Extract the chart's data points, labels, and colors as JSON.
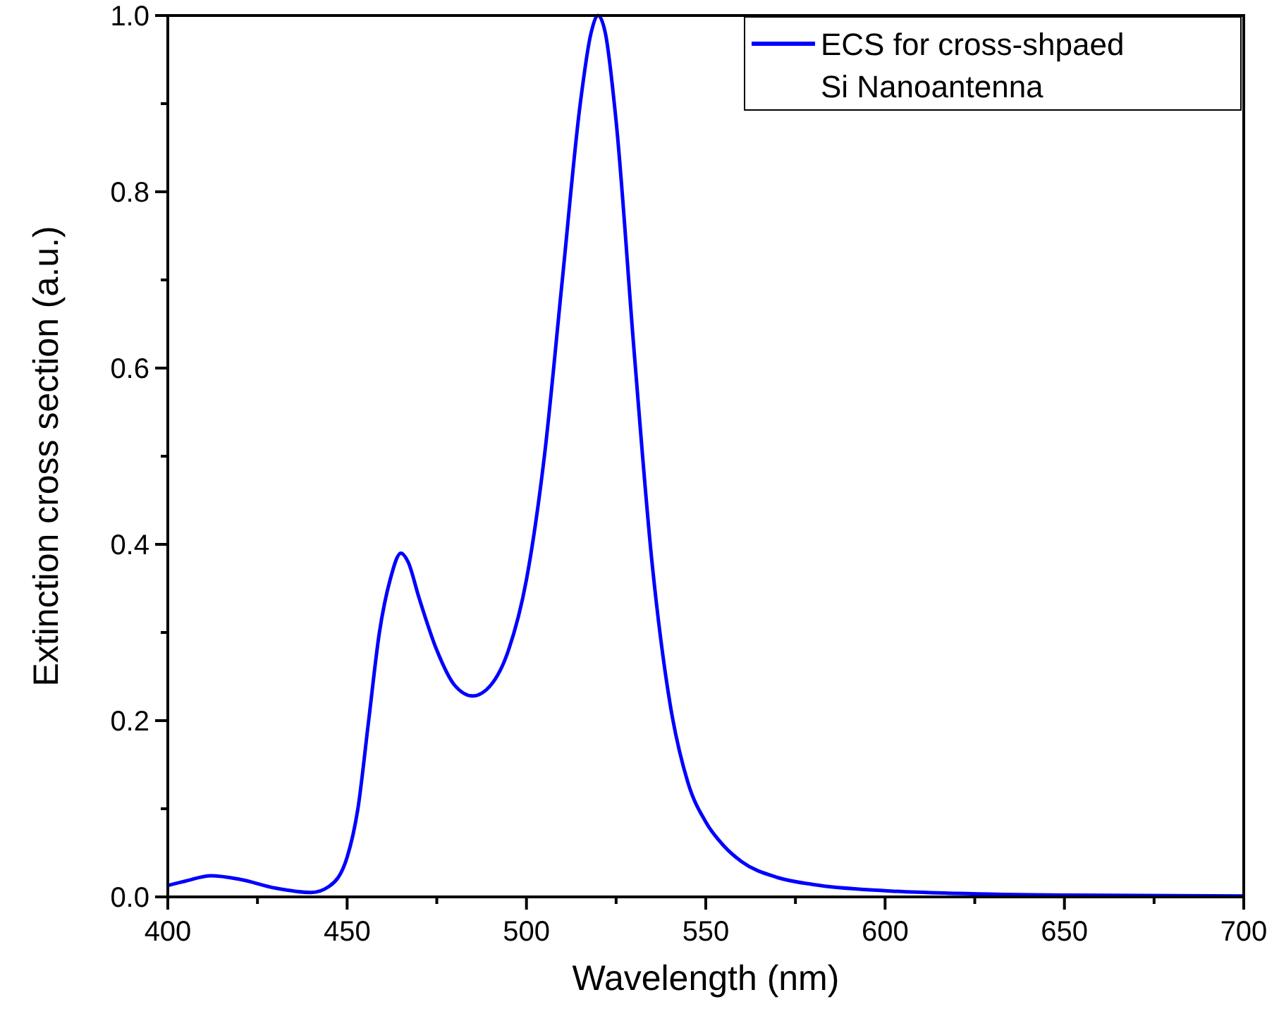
{
  "chart_data": {
    "type": "line",
    "xlabel": "Wavelength (nm)",
    "ylabel": "Extinction cross section (a.u.)",
    "xlim": [
      400,
      700
    ],
    "ylim": [
      0,
      1
    ],
    "xticks": [
      400,
      {
        "value": 425,
        "label": null
      },
      450,
      {
        "value": 475,
        "label": null
      },
      500,
      {
        "value": 525,
        "label": null
      },
      550,
      {
        "value": 575,
        "label": null
      },
      600,
      {
        "value": 625,
        "label": null
      },
      650,
      {
        "value": 675,
        "label": null
      },
      700
    ],
    "yticks": [
      "0.0",
      {
        "value": 0.1,
        "label": null
      },
      0.2,
      {
        "value": 0.3,
        "label": null
      },
      0.4,
      {
        "value": 0.5,
        "label": null
      },
      0.6,
      {
        "value": 0.7,
        "label": null
      },
      0.8,
      {
        "value": 0.9,
        "label": null
      },
      "1.0"
    ],
    "grid": false,
    "legend": "top right",
    "marker": "none",
    "line_style": "solid",
    "series": [
      {
        "name": "ECS for cross-shpaed\nSi Nanoantenna",
        "color": "#0000ff",
        "x": [
          400,
          405,
          412,
          420,
          430,
          440,
          445,
          450,
          453,
          456,
          459,
          462,
          465,
          467,
          470,
          475,
          480,
          485,
          490,
          495,
          500,
          505,
          510,
          515,
          518,
          520,
          522,
          525,
          530,
          535,
          540,
          545,
          550,
          555,
          560,
          570,
          580,
          600,
          620,
          650,
          700
        ],
        "values": [
          0.013,
          0.018,
          0.024,
          0.02,
          0.01,
          0.005,
          0.012,
          0.045,
          0.1,
          0.2,
          0.3,
          0.36,
          0.39,
          0.38,
          0.34,
          0.28,
          0.24,
          0.228,
          0.24,
          0.28,
          0.36,
          0.5,
          0.7,
          0.9,
          0.98,
          1.0,
          0.98,
          0.88,
          0.62,
          0.38,
          0.22,
          0.13,
          0.085,
          0.058,
          0.04,
          0.022,
          0.014,
          0.007,
          0.004,
          0.002,
          0.001
        ]
      }
    ]
  }
}
